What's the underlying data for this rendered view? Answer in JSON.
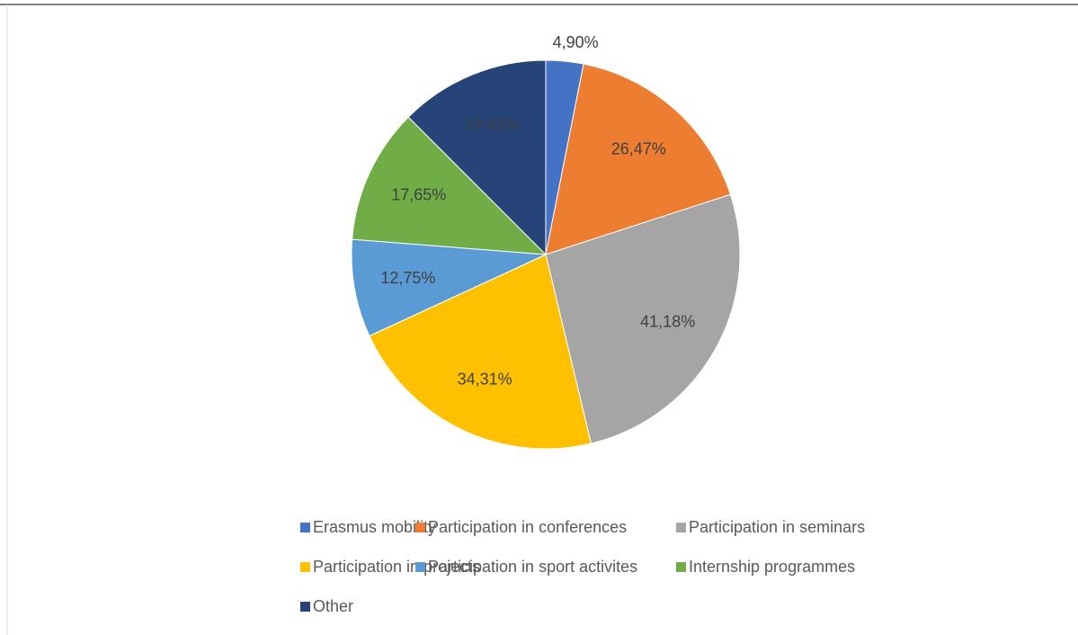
{
  "chart_data": {
    "type": "pie",
    "categories": [
      "Erasmus mobility",
      "Participation in conferences",
      "Participation in seminars",
      "Participation in projects",
      "Participation in sport activites",
      "Internship programmes",
      "Other"
    ],
    "values": [
      4.9,
      26.47,
      41.18,
      34.31,
      12.75,
      17.65,
      19.61
    ],
    "value_labels": [
      "4,90%",
      "26,47%",
      "41,18%",
      "34,31%",
      "12,75%",
      "17,65%",
      "19,61%"
    ],
    "colors": [
      "#4472c4",
      "#ed7d31",
      "#a5a5a5",
      "#ffc000",
      "#5b9bd5",
      "#70ad47",
      "#264478"
    ],
    "legend": "bottom"
  }
}
